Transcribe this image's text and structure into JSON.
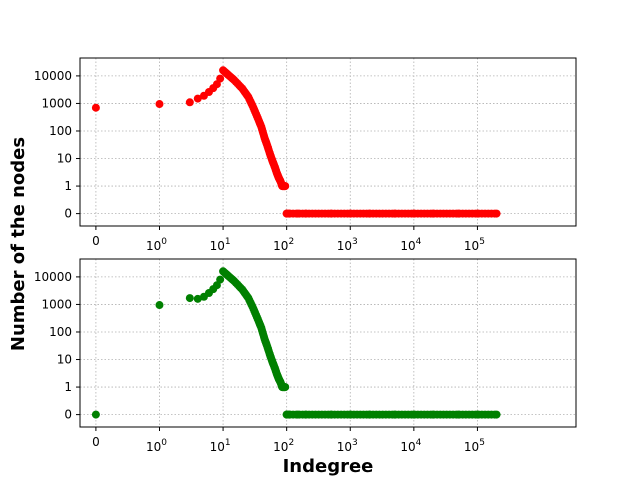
{
  "figure": {
    "xlabel": "Indegree",
    "ylabel": "Number of the nodes"
  },
  "colors": {
    "top": "#ff0000",
    "bottom": "#008000",
    "grid": "#b0b0b0",
    "axis": "#000000"
  },
  "chart_data": [
    {
      "type": "scatter",
      "panel": "top",
      "color": "#ff0000",
      "xscale": "symlog",
      "yscale": "symlog",
      "grid": true,
      "x_ticks": [
        "0",
        "10^0",
        "10^1",
        "10^2",
        "10^3",
        "10^4",
        "10^5"
      ],
      "y_ticks": [
        "0",
        "1",
        "10",
        "100",
        "1000",
        "10000"
      ],
      "ylim": [
        0,
        30000
      ],
      "x": [
        0,
        1,
        3,
        4,
        5,
        6,
        7,
        8,
        9,
        10,
        12,
        15,
        20,
        25,
        30,
        35,
        40,
        45,
        50,
        55,
        60,
        65,
        70,
        75,
        80,
        85,
        90,
        95,
        100,
        105,
        110,
        150,
        200,
        500,
        1000,
        2000,
        5000,
        10000,
        20000,
        50000,
        100000,
        200000
      ],
      "y": [
        700,
        950,
        1100,
        1500,
        1900,
        2600,
        3600,
        5000,
        8000,
        16000,
        11000,
        7000,
        3500,
        1700,
        700,
        300,
        140,
        55,
        28,
        14,
        8,
        5,
        3,
        2,
        1.5,
        1,
        1,
        1,
        0,
        0,
        0,
        0,
        0,
        0,
        0,
        0,
        0,
        0,
        0,
        0,
        0,
        0
      ]
    },
    {
      "type": "scatter",
      "panel": "bottom",
      "color": "#008000",
      "xscale": "symlog",
      "yscale": "symlog",
      "grid": true,
      "x_ticks": [
        "0",
        "10^0",
        "10^1",
        "10^2",
        "10^3",
        "10^4",
        "10^5"
      ],
      "y_ticks": [
        "0",
        "1",
        "10",
        "100",
        "1000",
        "10000"
      ],
      "ylim": [
        0,
        30000
      ],
      "x": [
        0,
        1,
        3,
        4,
        5,
        6,
        7,
        8,
        9,
        10,
        12,
        15,
        20,
        25,
        30,
        35,
        40,
        45,
        50,
        55,
        60,
        65,
        70,
        75,
        80,
        85,
        90,
        95,
        100,
        105,
        110,
        150,
        200,
        500,
        1000,
        2000,
        5000,
        10000,
        20000,
        50000,
        100000,
        200000
      ],
      "y": [
        0,
        950,
        1700,
        1600,
        1900,
        2600,
        3600,
        5000,
        8000,
        16000,
        11000,
        7000,
        3500,
        1700,
        700,
        300,
        140,
        55,
        28,
        14,
        8,
        5,
        3,
        2,
        1.5,
        1,
        1,
        1,
        0,
        0,
        0,
        0,
        0,
        0,
        0,
        0,
        0,
        0,
        0,
        0,
        0,
        0
      ]
    }
  ]
}
